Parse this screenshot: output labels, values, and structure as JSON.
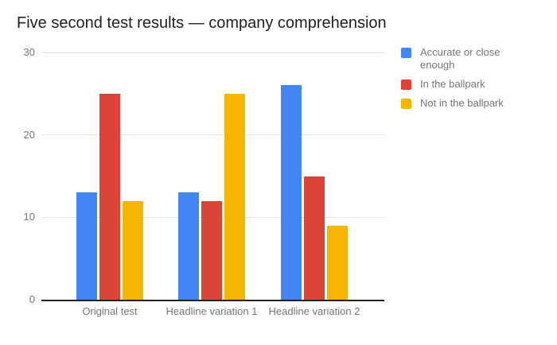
{
  "chart_data": {
    "type": "bar",
    "title": "Five second test results — company comprehension",
    "categories": [
      "Original test",
      "Headline variation 1",
      "Headline variation 2"
    ],
    "series": [
      {
        "name": "Accurate or close enough",
        "color": "#4285F4",
        "values": [
          13,
          13,
          26
        ]
      },
      {
        "name": "In the ballpark",
        "color": "#DB4437",
        "values": [
          25,
          12,
          15
        ]
      },
      {
        "name": "Not in the ballpark",
        "color": "#F4B400",
        "values": [
          12,
          25,
          9
        ]
      }
    ],
    "yticks": [
      0,
      10,
      20,
      30
    ],
    "ylim": [
      0,
      30
    ],
    "grid": true,
    "legend_position": "right"
  },
  "colors": {
    "background": "#ffffff",
    "title_text": "#212121",
    "axis_text": "#757575",
    "axis_line": "#212121",
    "gridline": "#e0e0e0",
    "legend_text": "#757575"
  }
}
